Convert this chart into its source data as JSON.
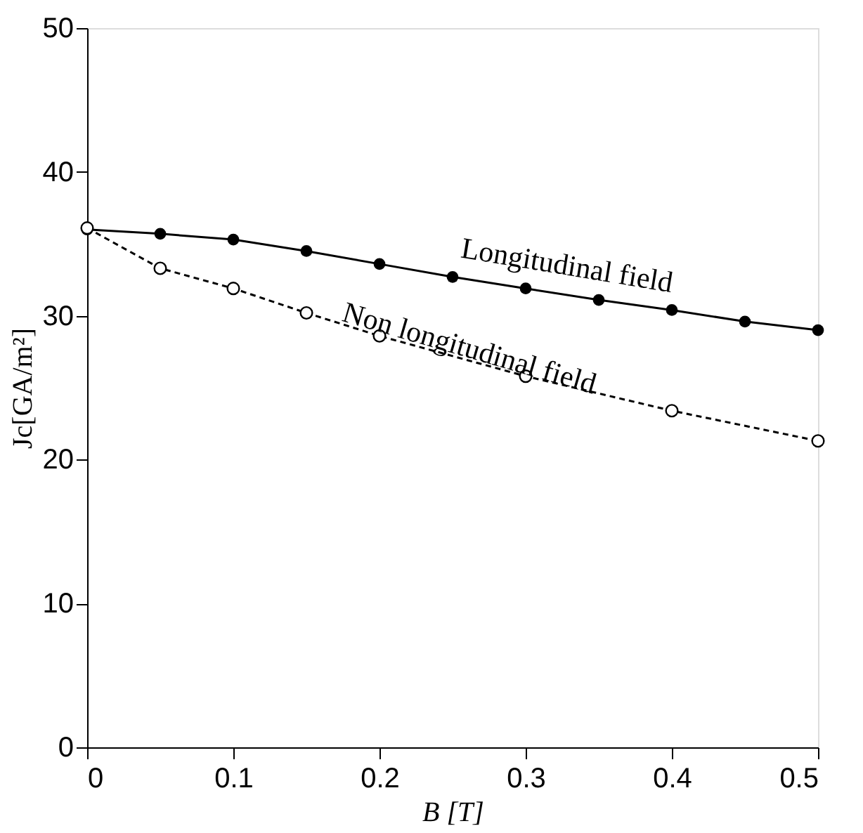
{
  "chart_data": {
    "type": "line",
    "xlabel": "B [T]",
    "ylabel": "Jc[GA/m²]",
    "xlim": [
      0,
      0.5
    ],
    "xticks": [
      0,
      0.1,
      0.2,
      0.3,
      0.4,
      0.5
    ],
    "ylim": [
      0,
      50
    ],
    "yticks": [
      0,
      10,
      20,
      30,
      40,
      50
    ],
    "grid": false,
    "series": [
      {
        "name": "Longitudinal field",
        "color": "#000000",
        "marker": "circle",
        "line_style": "solid",
        "x": [
          0,
          0.05,
          0.1,
          0.15,
          0.2,
          0.25,
          0.3,
          0.35,
          0.4,
          0.45,
          0.5
        ],
        "values": [
          36.0,
          35.7,
          35.3,
          34.5,
          33.6,
          32.7,
          31.9,
          31.1,
          30.4,
          29.6,
          29.0
        ]
      },
      {
        "name": "Non longitudinal field",
        "color": "#000000",
        "marker": "circle",
        "line_style": "dashed",
        "x": [
          0,
          0.05,
          0.1,
          0.15,
          0.2,
          0.3,
          0.4,
          0.5
        ],
        "values": [
          36.1,
          33.3,
          31.9,
          30.2,
          28.6,
          25.8,
          23.4,
          21.3
        ]
      }
    ]
  }
}
